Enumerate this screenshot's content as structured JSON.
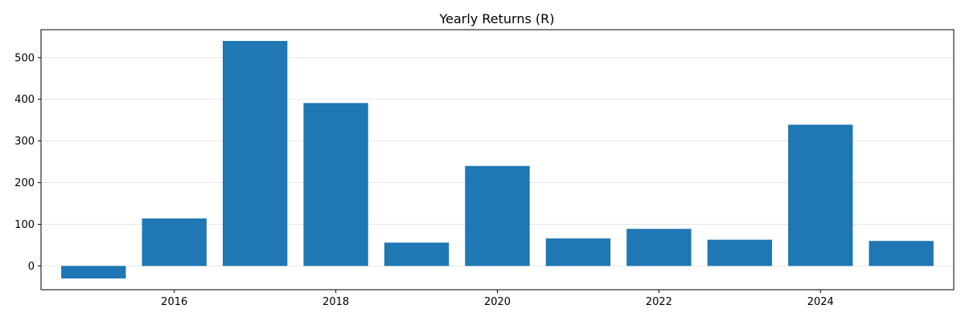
{
  "chart_data": {
    "type": "bar",
    "title": "Yearly Returns (R)",
    "xlabel": "",
    "ylabel": "",
    "x": [
      2015,
      2016,
      2017,
      2018,
      2019,
      2020,
      2021,
      2022,
      2023,
      2024,
      2025
    ],
    "values": [
      -30,
      114,
      540,
      391,
      56,
      240,
      66,
      89,
      63,
      339,
      60
    ],
    "bar_color": "#1f77b4",
    "xlim": [
      2014.35,
      2025.65
    ],
    "ylim": [
      -57,
      567
    ],
    "xticks": [
      2016,
      2018,
      2020,
      2022,
      2024
    ],
    "yticks": [
      0,
      100,
      200,
      300,
      400,
      500
    ],
    "grid": "horizontal",
    "legend": "none"
  }
}
